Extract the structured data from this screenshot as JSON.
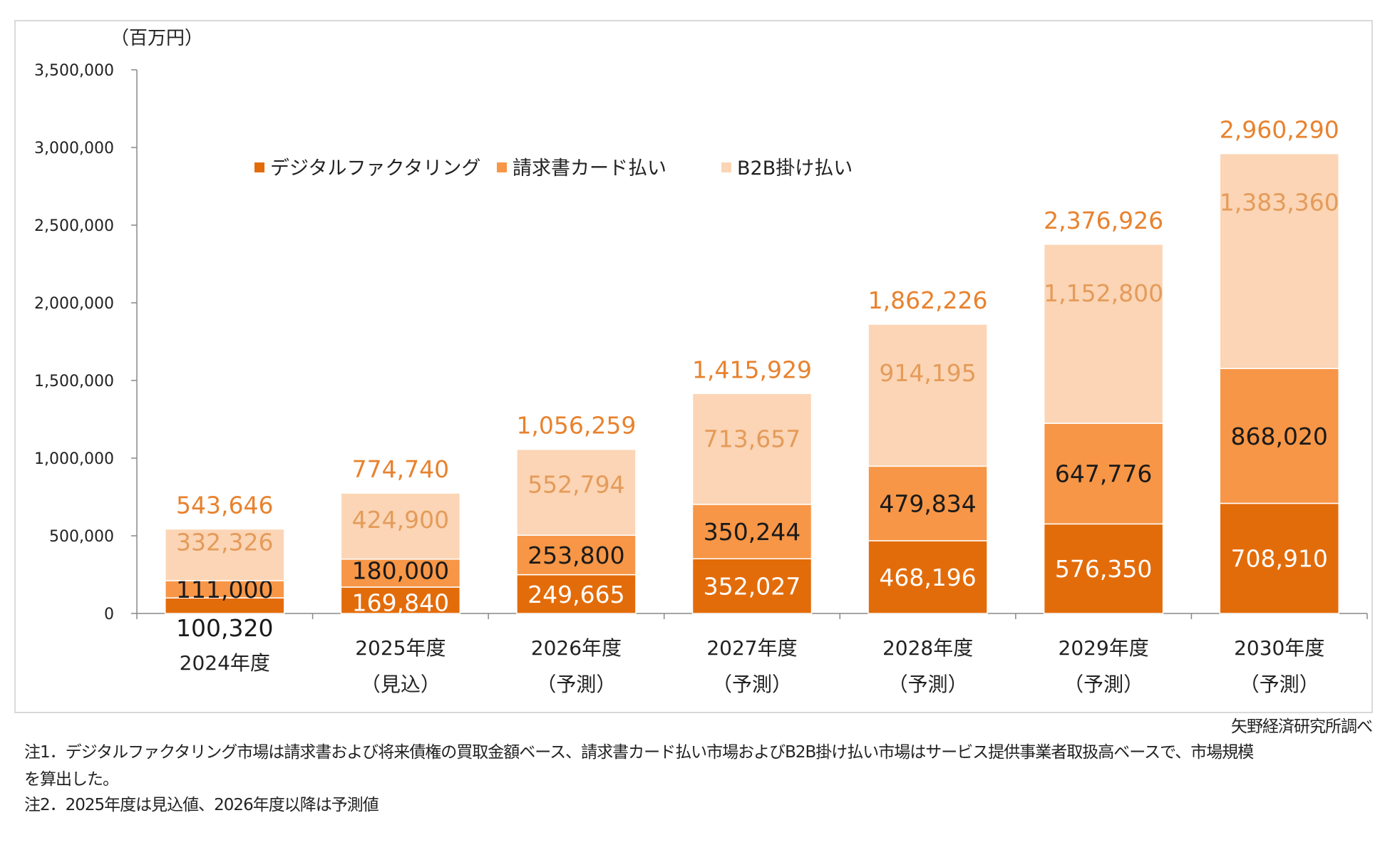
{
  "chart_data": {
    "type": "bar",
    "stacked": true,
    "unit_label": "（百万円）",
    "categories": [
      "2024年度",
      "2025年度",
      "2026年度",
      "2027年度",
      "2028年度",
      "2029年度",
      "2030年度"
    ],
    "category_sublabels": [
      "",
      "（見込）",
      "（予測）",
      "（予測）",
      "（予測）",
      "（予測）",
      "（予測）"
    ],
    "series": [
      {
        "name": "デジタルファクタリング",
        "color": "#E36C0A",
        "values": [
          100320,
          169840,
          249665,
          352027,
          468196,
          576350,
          708910
        ],
        "labels": [
          "100,320",
          "169,840",
          "249,665",
          "352,027",
          "468,196",
          "576,350",
          "708,910"
        ]
      },
      {
        "name": "請求書カード払い",
        "color": "#F79646",
        "values": [
          111000,
          180000,
          253800,
          350244,
          479834,
          647776,
          868020
        ],
        "labels": [
          "111,000",
          "180,000",
          "253,800",
          "350,244",
          "479,834",
          "647,776",
          "868,020"
        ]
      },
      {
        "name": "B2B掛け払い",
        "color": "#FBD5B5",
        "values": [
          332326,
          424900,
          552794,
          713657,
          914195,
          1152800,
          1383360
        ],
        "labels": [
          "332,326",
          "424,900",
          "552,794",
          "713,657",
          "914,195",
          "1,152,800",
          "1,383,360"
        ]
      }
    ],
    "totals": [
      543646,
      774740,
      1056259,
      1415929,
      1862226,
      2376926,
      2960290
    ],
    "total_labels": [
      "543,646",
      "774,740",
      "1,056,259",
      "1,415,929",
      "1,862,226",
      "2,376,926",
      "2,960,290"
    ],
    "ylim": [
      0,
      3500000
    ],
    "yticks": [
      0,
      500000,
      1000000,
      1500000,
      2000000,
      2500000,
      3000000,
      3500000
    ],
    "ytick_labels": [
      "0",
      "500,000",
      "1,000,000",
      "1,500,000",
      "2,000,000",
      "2,500,000",
      "3,000,000",
      "3,500,000"
    ],
    "grid": false,
    "legend_position": "top-left",
    "total_label_color": "#E8822E"
  },
  "source": "矢野経済研究所調べ",
  "notes": [
    "注1．デジタルファクタリング市場は請求書および将来債権の買取金額ベース、請求書カード払い市場およびB2B掛け払い市場はサービス提供事業者取扱高ベースで、市場規模",
    "を算出した。",
    "注2．2025年度は見込値、2026年度以降は予測値"
  ]
}
